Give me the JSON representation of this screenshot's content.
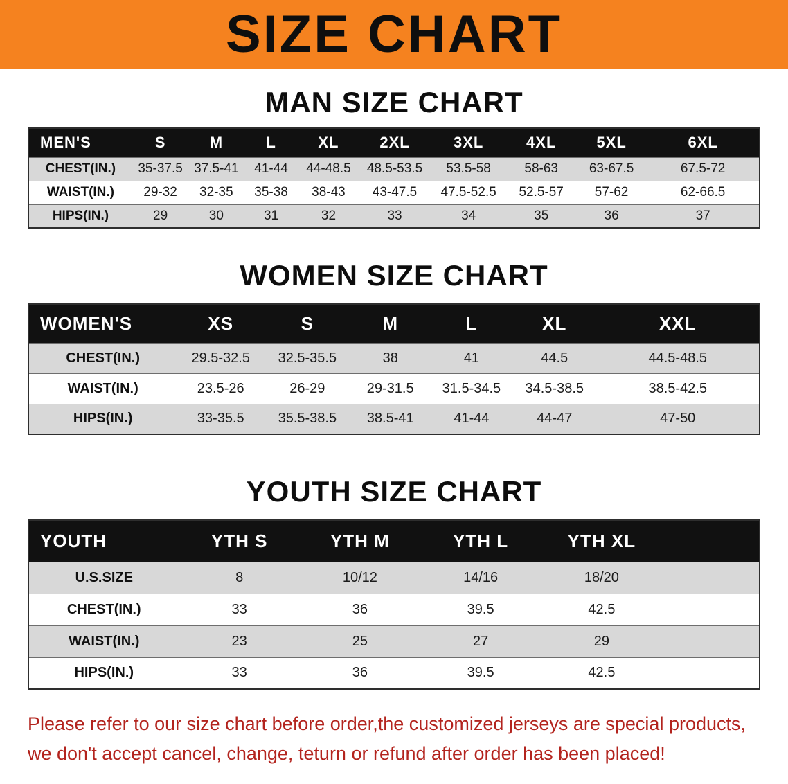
{
  "banner": {
    "title": "SIZE CHART"
  },
  "colors": {
    "banner_bg": "#f5821f",
    "header_bg": "#111111",
    "shade": "#d8d8d8",
    "footer_text": "#b3241e"
  },
  "sections": [
    {
      "heading": "MAN SIZE CHART",
      "table": {
        "header": [
          "MEN'S",
          "S",
          "M",
          "L",
          "XL",
          "2XL",
          "3XL",
          "4XL",
          "5XL",
          "6XL"
        ],
        "rows": [
          [
            "CHEST(IN.)",
            "35-37.5",
            "37.5-41",
            "41-44",
            "44-48.5",
            "48.5-53.5",
            "53.5-58",
            "58-63",
            "63-67.5",
            "67.5-72"
          ],
          [
            "WAIST(IN.)",
            "29-32",
            "32-35",
            "35-38",
            "38-43",
            "43-47.5",
            "47.5-52.5",
            "52.5-57",
            "57-62",
            "62-66.5"
          ],
          [
            "HIPS(IN.)",
            "29",
            "30",
            "31",
            "32",
            "33",
            "34",
            "35",
            "36",
            "37"
          ]
        ]
      }
    },
    {
      "heading": "WOMEN SIZE CHART",
      "table": {
        "header": [
          "WOMEN'S",
          "XS",
          "S",
          "M",
          "L",
          "XL",
          "XXL"
        ],
        "rows": [
          [
            "CHEST(IN.)",
            "29.5-32.5",
            "32.5-35.5",
            "38",
            "41",
            "44.5",
            "44.5-48.5"
          ],
          [
            "WAIST(IN.)",
            "23.5-26",
            "26-29",
            "29-31.5",
            "31.5-34.5",
            "34.5-38.5",
            "38.5-42.5"
          ],
          [
            "HIPS(IN.)",
            "33-35.5",
            "35.5-38.5",
            "38.5-41",
            "41-44",
            "44-47",
            "47-50"
          ]
        ]
      }
    },
    {
      "heading": "YOUTH SIZE CHART",
      "table": {
        "header": [
          "YOUTH",
          "YTH S",
          "YTH M",
          "YTH L",
          "YTH XL"
        ],
        "rows": [
          [
            "U.S.SIZE",
            "8",
            "10/12",
            "14/16",
            "18/20"
          ],
          [
            "CHEST(IN.)",
            "33",
            "36",
            "39.5",
            "42.5"
          ],
          [
            "WAIST(IN.)",
            "23",
            "25",
            "27",
            "29"
          ],
          [
            "HIPS(IN.)",
            "33",
            "36",
            "39.5",
            "42.5"
          ]
        ]
      }
    }
  ],
  "footer": {
    "line1": "Please refer to our size chart before order,the customized jerseys are special products,",
    "line2": "we don't accept cancel, change, teturn or refund after order has been placed!"
  }
}
